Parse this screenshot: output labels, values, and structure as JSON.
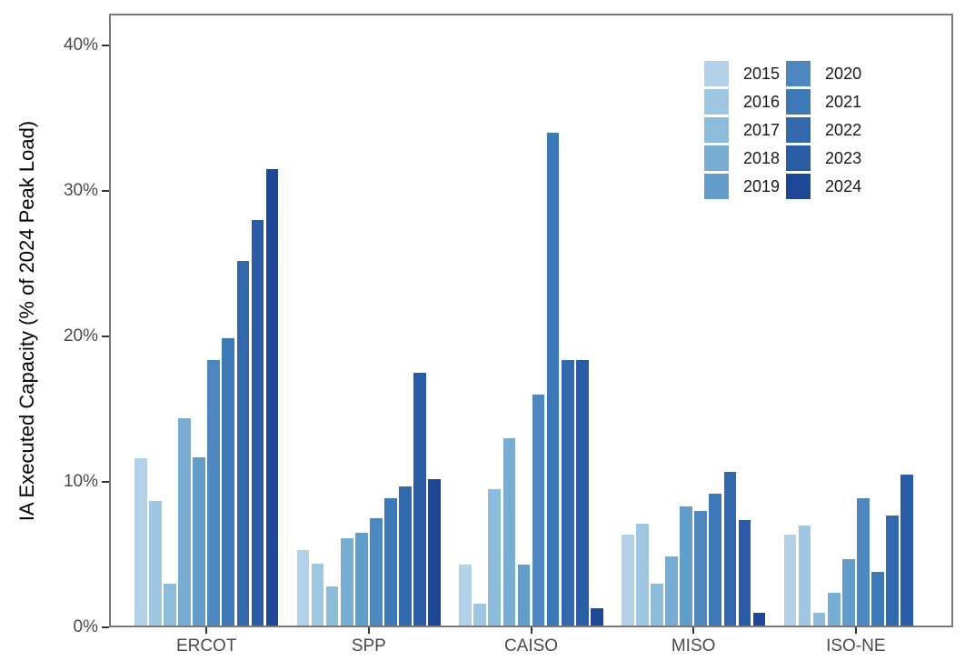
{
  "chart_data": {
    "type": "bar",
    "title": "",
    "xlabel": "",
    "ylabel": "IA Executed Capacity (% of 2024 Peak Load)",
    "ylim": [
      0,
      42.2
    ],
    "yticks": [
      0,
      10,
      20,
      30,
      40
    ],
    "ytick_labels": [
      "0%",
      "10%",
      "20%",
      "30%",
      "40%"
    ],
    "categories": [
      "ERCOT",
      "SPP",
      "CAISO",
      "MISO",
      "ISO-NE"
    ],
    "grid": false,
    "legend_position": "top-right-inside",
    "legend_columns": 2,
    "panel_border_color": "#75797c",
    "axis_text_color": "#4a4a4a",
    "axis_title_color": "#000000",
    "series": [
      {
        "name": "2015",
        "color": "#b3d1e8",
        "values": [
          11.6,
          5.3,
          4.3,
          6.4,
          6.4
        ]
      },
      {
        "name": "2016",
        "color": "#a0c7e1",
        "values": [
          8.7,
          4.4,
          1.6,
          7.1,
          7.0
        ]
      },
      {
        "name": "2017",
        "color": "#8dbbda",
        "values": [
          3.0,
          2.8,
          9.5,
          3.0,
          1.0
        ]
      },
      {
        "name": "2018",
        "color": "#78acd3",
        "values": [
          14.4,
          6.1,
          13.0,
          4.9,
          2.4
        ]
      },
      {
        "name": "2019",
        "color": "#639dcb",
        "values": [
          11.7,
          6.5,
          4.3,
          8.3,
          4.7
        ]
      },
      {
        "name": "2020",
        "color": "#4e87c0",
        "values": [
          18.4,
          7.5,
          16.0,
          8.0,
          8.9
        ]
      },
      {
        "name": "2021",
        "color": "#3d79b7",
        "values": [
          19.9,
          8.9,
          34.0,
          9.2,
          3.8
        ]
      },
      {
        "name": "2022",
        "color": "#3268ac",
        "values": [
          25.2,
          9.7,
          18.4,
          10.7,
          7.7
        ]
      },
      {
        "name": "2023",
        "color": "#2a5ba5",
        "values": [
          28.0,
          17.5,
          18.4,
          7.4,
          10.5
        ]
      },
      {
        "name": "2024",
        "color": "#1f4798",
        "values": [
          31.5,
          10.2,
          1.3,
          1.0,
          null
        ]
      }
    ]
  }
}
